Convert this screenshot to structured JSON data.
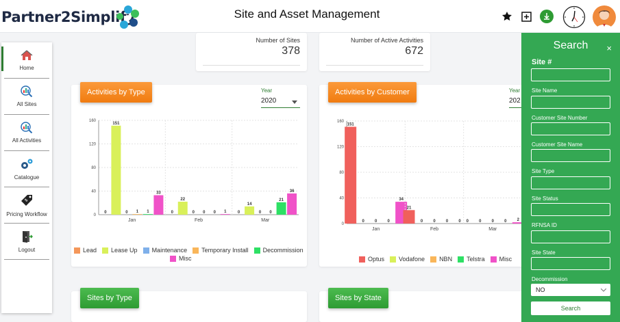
{
  "header": {
    "logo_text": "Partner2Simplify",
    "title": "Site and Asset Management",
    "icons": [
      "star-icon",
      "add-box-icon",
      "download-icon",
      "clock-icon",
      "avatar"
    ]
  },
  "sidebar": {
    "items": [
      {
        "label": "Home",
        "icon": "home-icon",
        "active": true
      },
      {
        "label": "All Sites",
        "icon": "chart-search-icon"
      },
      {
        "label": "All Activities",
        "icon": "chart-search-icon"
      },
      {
        "label": "Catalogue",
        "icon": "gears-icon"
      },
      {
        "label": "Pricing Workflow",
        "icon": "price-tag-icon"
      },
      {
        "label": "Logout",
        "icon": "logout-icon"
      }
    ]
  },
  "stats": {
    "sites_label": "Number of Sites",
    "sites_value": "378",
    "activities_label": "Number of Active Activities",
    "activities_value": "672"
  },
  "cards": {
    "by_type_title": "Activities by Type",
    "by_customer_title": "Activities by Customer",
    "sites_by_type_title": "Sites by Type",
    "sites_by_state_title": "Sites by State",
    "year_label": "Year",
    "year_value": "2020",
    "year_value_partial": "202"
  },
  "chart_data": [
    {
      "type": "bar",
      "categories": [
        "Jan",
        "Feb",
        "Mar"
      ],
      "ylim": [
        0,
        160
      ],
      "yticks": [
        0,
        40,
        80,
        120,
        160
      ],
      "series": [
        {
          "name": "Lead",
          "color": "#f4975a",
          "values": [
            0,
            0,
            0
          ]
        },
        {
          "name": "Lease Up",
          "color": "#d9f05a",
          "values": [
            151,
            22,
            14
          ]
        },
        {
          "name": "Maintenance",
          "color": "#7fb0ea",
          "values": [
            0,
            0,
            0
          ]
        },
        {
          "name": "Temporary Install",
          "color": "#f9b65a",
          "values": [
            1,
            0,
            0
          ]
        },
        {
          "name": "Decommission",
          "color": "#2ee065",
          "values": [
            1,
            0,
            21
          ]
        },
        {
          "name": "Misc",
          "color": "#f052c8",
          "values": [
            33,
            1,
            36
          ]
        }
      ]
    },
    {
      "type": "bar",
      "categories": [
        "Jan",
        "Feb",
        "Mar"
      ],
      "ylim": [
        0,
        160
      ],
      "yticks": [
        0,
        40,
        80,
        120,
        160
      ],
      "series": [
        {
          "name": "Optus",
          "color": "#f0605c",
          "values": [
            151,
            21,
            0
          ]
        },
        {
          "name": "Vodafone",
          "color": "#d9f05a",
          "values": [
            0,
            0,
            0
          ]
        },
        {
          "name": "NBN",
          "color": "#f9b65a",
          "values": [
            0,
            0,
            0
          ]
        },
        {
          "name": "Telstra",
          "color": "#2ee065",
          "values": [
            0,
            0,
            0
          ]
        },
        {
          "name": "Misc",
          "color": "#f052c8",
          "values": [
            34,
            0,
            2
          ]
        }
      ]
    }
  ],
  "search": {
    "title": "Search",
    "close": "×",
    "fields": [
      {
        "label": "Site #"
      },
      {
        "label": "Site Name"
      },
      {
        "label": "Customer Site Number"
      },
      {
        "label": "Customer Site Name"
      },
      {
        "label": "Site Type"
      },
      {
        "label": "Site Status"
      },
      {
        "label": "RFNSA ID"
      },
      {
        "label": "Site State"
      }
    ],
    "decommission_label": "Decommission",
    "decommission_value": "NO",
    "button": "Search"
  }
}
